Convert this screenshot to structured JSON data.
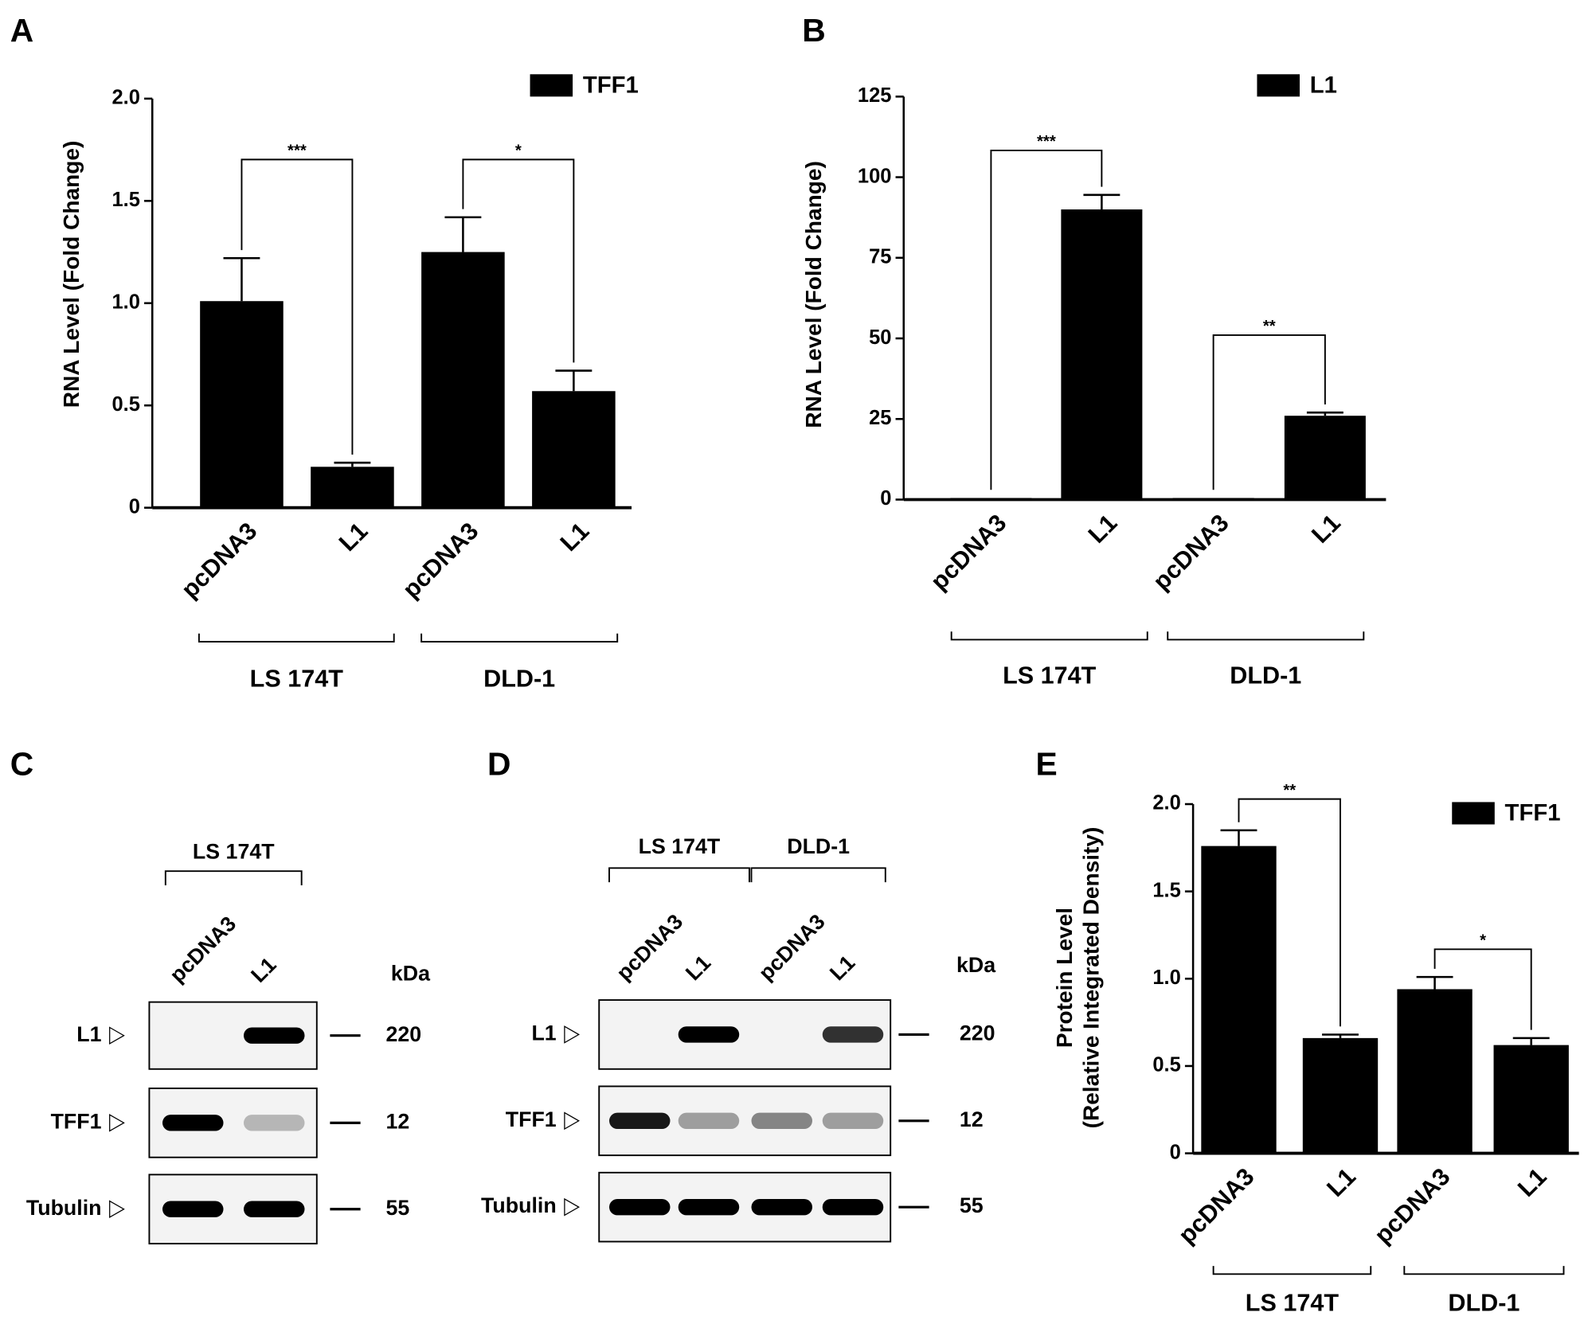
{
  "chart_data": [
    {
      "type": "bar",
      "panel": "A",
      "ylabel": [
        "RNA Level (Fold Change)"
      ],
      "legend": "TFF1",
      "color": "#000000",
      "categories": [
        "pcDNA3",
        "L1",
        "pcDNA3",
        "L1"
      ],
      "values": [
        1.01,
        0.2,
        1.25,
        0.57
      ],
      "errors": [
        0.21,
        0.02,
        0.17,
        0.1
      ],
      "ylim": [
        0,
        2
      ],
      "yticks": [
        0,
        0.5,
        {
          "value": 1,
          "label": "1.0"
        },
        1.5,
        {
          "value": 2,
          "label": "2.0"
        }
      ],
      "groups": [
        "LS 174T",
        "DLD-1"
      ],
      "significance": [
        "***",
        "*"
      ]
    },
    {
      "type": "bar",
      "panel": "B",
      "ylabel": [
        "RNA Level (Fold Change)"
      ],
      "legend": "L1",
      "color": "#000000",
      "categories": [
        "pcDNA3",
        "L1",
        "pcDNA3",
        "L1"
      ],
      "values": [
        0.5,
        90,
        0.5,
        26
      ],
      "errors": [
        0,
        4.5,
        0,
        1
      ],
      "ylim": [
        0,
        125
      ],
      "yticks": [
        0,
        25,
        50,
        75,
        100,
        125
      ],
      "groups": [
        "LS 174T",
        "DLD-1"
      ],
      "significance": [
        "***",
        "**"
      ]
    },
    {
      "type": "blot",
      "panel": "C",
      "groups": [
        "LS 174T"
      ],
      "lanes": [
        "pcDNA3",
        "L1"
      ],
      "unit": "kDa",
      "rows": [
        {
          "name": "L1",
          "size": 220
        },
        {
          "name": "TFF1",
          "size": 12
        },
        {
          "name": "Tubulin",
          "size": 55
        }
      ]
    },
    {
      "type": "blot",
      "panel": "D",
      "groups": [
        "LS 174T",
        "DLD-1"
      ],
      "lanes": [
        "pcDNA3",
        "L1",
        "pcDNA3",
        "L1"
      ],
      "unit": "kDa",
      "rows": [
        {
          "name": "L1",
          "size": 220
        },
        {
          "name": "TFF1",
          "size": 12
        },
        {
          "name": "Tubulin",
          "size": 55
        }
      ]
    },
    {
      "type": "bar",
      "panel": "E",
      "ylabel": [
        "Protein Level",
        "(Relative Integrated Density)"
      ],
      "legend": "TFF1",
      "color": "#000000",
      "categories": [
        "pcDNA3",
        "L1",
        "pcDNA3",
        "L1"
      ],
      "values": [
        1.76,
        0.66,
        0.94,
        0.62
      ],
      "errors": [
        0.09,
        0.02,
        0.07,
        0.04
      ],
      "ylim": [
        0,
        2
      ],
      "yticks": [
        0,
        0.5,
        {
          "value": 1,
          "label": "1.0"
        },
        1.5,
        {
          "value": 2,
          "label": "2.0"
        }
      ],
      "groups": [
        "LS 174T",
        "DLD-1"
      ],
      "significance": [
        "**",
        "*"
      ]
    }
  ]
}
